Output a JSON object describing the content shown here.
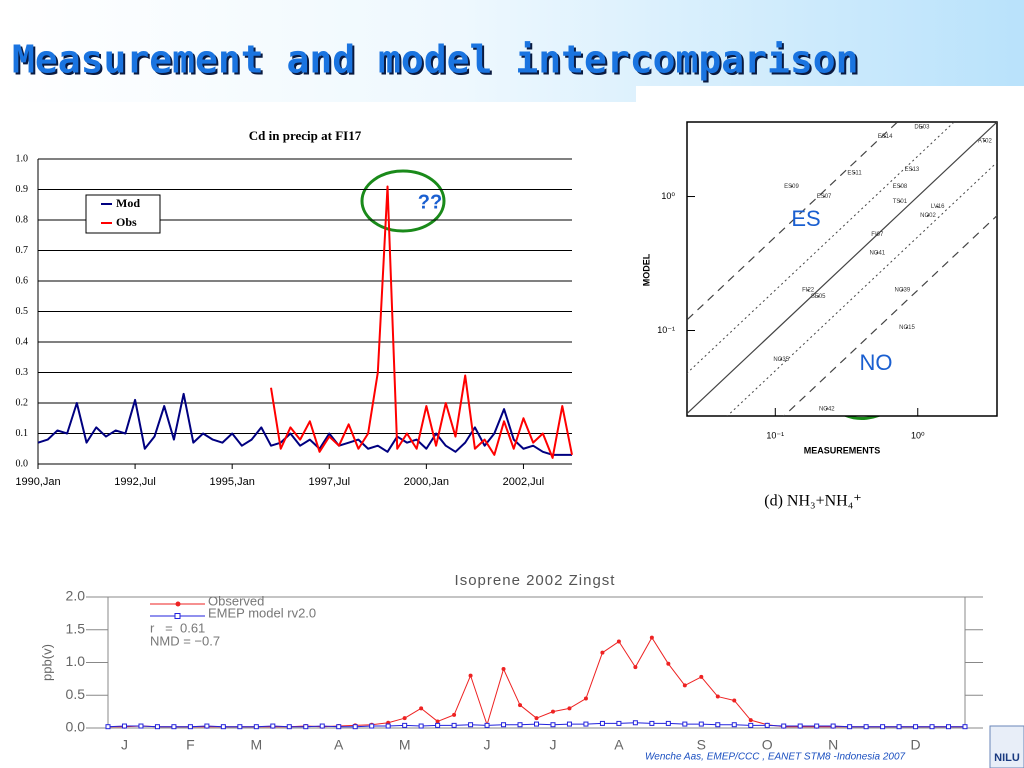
{
  "title": "Measurement and model intercomparison",
  "footer": "Wenche Aas, EMEP/CCC , EANET STM8 -Indonesia 2007",
  "logo": "NILU",
  "chart_data": [
    {
      "type": "line",
      "title": "Cd in precip at FI17",
      "grid": true,
      "legend": "upper left",
      "categories": [
        "1990,Jan",
        null,
        null,
        null,
        null,
        null,
        null,
        null,
        null,
        null,
        "1992,Jul",
        null,
        null,
        null,
        null,
        null,
        null,
        null,
        null,
        null,
        "1995,Jan",
        null,
        null,
        null,
        null,
        null,
        null,
        null,
        null,
        null,
        "1997,Jul",
        null,
        null,
        null,
        null,
        null,
        null,
        null,
        null,
        null,
        "2000,Jan",
        null,
        null,
        null,
        null,
        null,
        null,
        null,
        null,
        null,
        "2002,Jul",
        null,
        null,
        null,
        null,
        null
      ],
      "series": [
        {
          "name": "Mod",
          "color": "#000080",
          "values": [
            0.07,
            0.08,
            0.11,
            0.1,
            0.2,
            0.07,
            0.12,
            0.09,
            0.11,
            0.1,
            0.21,
            0.05,
            0.09,
            0.19,
            0.08,
            0.23,
            0.07,
            0.1,
            0.08,
            0.07,
            0.1,
            0.06,
            0.08,
            0.12,
            0.06,
            0.07,
            0.1,
            0.06,
            0.08,
            0.05,
            0.1,
            0.06,
            0.07,
            0.08,
            0.05,
            0.06,
            0.04,
            0.09,
            0.07,
            0.08,
            0.05,
            0.1,
            0.06,
            0.04,
            0.07,
            0.12,
            0.06,
            0.1,
            0.18,
            0.08,
            0.05,
            0.06,
            0.04,
            0.03,
            0.03,
            0.03
          ]
        },
        {
          "name": "Obs",
          "color": "#ff0000",
          "values": [
            null,
            null,
            null,
            null,
            null,
            null,
            null,
            null,
            null,
            null,
            null,
            null,
            null,
            null,
            null,
            null,
            null,
            null,
            null,
            null,
            null,
            null,
            null,
            null,
            0.25,
            0.05,
            0.12,
            0.08,
            0.14,
            0.04,
            0.09,
            0.06,
            0.13,
            0.05,
            0.1,
            0.3,
            0.91,
            0.05,
            0.1,
            0.05,
            0.19,
            0.06,
            0.2,
            0.09,
            0.29,
            0.05,
            0.08,
            0.03,
            0.14,
            0.05,
            0.15,
            0.07,
            0.1,
            0.02,
            0.19,
            0.03
          ]
        }
      ],
      "ylim": [
        0,
        1
      ],
      "yticks": [
        {
          "value": 0,
          "label": "0.0"
        },
        0.1,
        0.2,
        0.3,
        0.4,
        0.5,
        0.6,
        0.7,
        0.8,
        0.9,
        {
          "value": 1,
          "label": "1.0"
        }
      ],
      "annotations": [
        "??"
      ]
    },
    {
      "type": "scatter",
      "caption": "(d) NH₃+NH₄⁺",
      "x_label": "MEASUREMENTS",
      "y_label": "MODEL",
      "log_x": true,
      "log_y": true,
      "color": "#333333",
      "point_labels": [
        "ES14",
        "NO39",
        "NO15",
        "NO42",
        "NO35",
        "FI22",
        "SE05",
        "NO41",
        "ES09",
        "ES07",
        "ES11",
        "TS01",
        "NO02",
        "LV16",
        "FI07",
        "DE03",
        "AT02",
        "ES08",
        "ES13"
      ],
      "x": [
        0.59,
        0.78,
        0.84,
        0.23,
        0.11,
        0.17,
        0.2,
        0.52,
        0.13,
        0.22,
        0.36,
        0.75,
        1.18,
        1.38,
        0.52,
        1.07,
        2.96,
        0.75,
        0.91
      ],
      "values": [
        2.8,
        0.2,
        0.105,
        0.026,
        0.061,
        0.2,
        0.18,
        0.38,
        1.19,
        1.0,
        1.5,
        0.92,
        0.72,
        0.84,
        0.52,
        3.3,
        2.6,
        1.19,
        1.59
      ],
      "xlim": [
        0.024,
        3.6
      ],
      "ylim": [
        0.023,
        3.6
      ],
      "xticks": [
        {
          "value": 0.1,
          "label": "10⁻¹"
        },
        {
          "value": 1,
          "label": "10⁰"
        }
      ],
      "yticks": [
        {
          "value": 0.1,
          "label": "10⁻¹"
        },
        {
          "value": 1,
          "label": "10⁰"
        }
      ],
      "annotations": [
        "ES",
        "NO"
      ]
    },
    {
      "type": "line",
      "title": "Isoprene 2002 Zingst",
      "y_label": "ppb(v)",
      "grid": false,
      "legend": "upper left",
      "categories": [
        null,
        "J",
        null,
        null,
        null,
        "F",
        null,
        null,
        null,
        "M",
        null,
        null,
        null,
        null,
        "A",
        null,
        null,
        null,
        "M",
        null,
        null,
        null,
        null,
        "J",
        null,
        null,
        null,
        "J",
        null,
        null,
        null,
        "A",
        null,
        null,
        null,
        null,
        "S",
        null,
        null,
        null,
        "O",
        null,
        null,
        null,
        "N",
        null,
        null,
        null,
        null,
        "D",
        null,
        null,
        null
      ],
      "series": [
        {
          "name": "Observed",
          "color": "#ee2222",
          "marker": "circle",
          "values": [
            0.02,
            0.02,
            0.03,
            0.02,
            0.02,
            0.02,
            0.02,
            0.02,
            0.02,
            0.02,
            0.02,
            0.02,
            0.03,
            0.02,
            0.03,
            0.04,
            0.05,
            0.08,
            0.15,
            0.3,
            0.1,
            0.2,
            0.8,
            0.05,
            0.9,
            0.35,
            0.15,
            0.25,
            0.3,
            0.45,
            1.15,
            1.32,
            0.93,
            1.38,
            0.98,
            0.65,
            0.78,
            0.48,
            0.42,
            0.12,
            0.05,
            0.02,
            0.02,
            0.02,
            0.02,
            0.02,
            0.02,
            0.02,
            0.02,
            0.02,
            0.02,
            0.02,
            0.02
          ]
        },
        {
          "name": "EMEP model rv2.0",
          "color": "#2222dd",
          "marker": "square",
          "values": [
            0.02,
            0.03,
            0.03,
            0.02,
            0.02,
            0.02,
            0.03,
            0.02,
            0.02,
            0.02,
            0.03,
            0.02,
            0.02,
            0.03,
            0.02,
            0.02,
            0.03,
            0.03,
            0.04,
            0.03,
            0.04,
            0.04,
            0.05,
            0.04,
            0.05,
            0.05,
            0.06,
            0.05,
            0.06,
            0.06,
            0.07,
            0.07,
            0.08,
            0.07,
            0.07,
            0.06,
            0.06,
            0.05,
            0.05,
            0.04,
            0.04,
            0.03,
            0.03,
            0.03,
            0.03,
            0.02,
            0.02,
            0.02,
            0.02,
            0.02,
            0.02,
            0.02,
            0.02
          ]
        }
      ],
      "ylim": [
        0,
        2
      ],
      "yticks": [
        {
          "value": 0,
          "label": "0.0"
        },
        0.5,
        {
          "value": 1,
          "label": "1.0"
        },
        1.5,
        {
          "value": 2,
          "label": "2.0"
        }
      ],
      "annotations": [
        "r   =  0.61",
        "NMD = −0.7"
      ]
    }
  ]
}
